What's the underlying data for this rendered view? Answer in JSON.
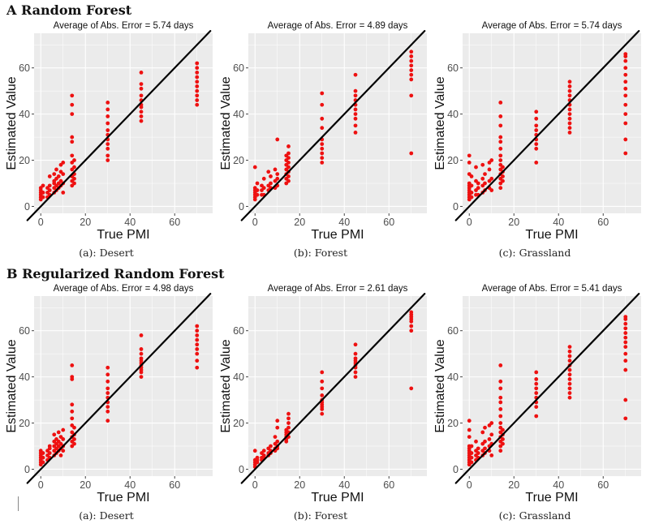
{
  "section_a_title": "A Random Forest",
  "section_b_title": "B Regularized Random Forest",
  "colors": {
    "points": "#ee1111",
    "panel_bg": "#ebebeb",
    "grid": "#ffffff",
    "line": "#000000"
  },
  "chart_data": [
    {
      "type": "scatter",
      "section": "A",
      "caption": "(a): Desert",
      "title": "Average of Abs. Error = 5.74 days",
      "xlabel": "True PMI",
      "ylabel": "Estimated Value",
      "xlim": [
        -3,
        77
      ],
      "ylim": [
        -3,
        75
      ],
      "xticks": [
        0,
        20,
        40,
        60
      ],
      "yticks": [
        0,
        20,
        40,
        60
      ],
      "reference_line": "y = x",
      "groups": [
        {
          "x": 0,
          "y": [
            3,
            4,
            5,
            6,
            7,
            8
          ]
        },
        {
          "x": 1,
          "y": [
            4,
            6,
            9
          ]
        },
        {
          "x": 3,
          "y": [
            4,
            6,
            8
          ]
        },
        {
          "x": 4,
          "y": [
            5,
            7,
            9,
            13
          ]
        },
        {
          "x": 6,
          "y": [
            6,
            8,
            10,
            11,
            14
          ]
        },
        {
          "x": 7,
          "y": [
            7,
            9,
            12,
            16
          ]
        },
        {
          "x": 8,
          "y": [
            8,
            10,
            13
          ]
        },
        {
          "x": 9,
          "y": [
            9,
            11,
            15,
            18
          ]
        },
        {
          "x": 10,
          "y": [
            6,
            10,
            14,
            19
          ]
        },
        {
          "x": 14,
          "y": [
            9,
            11,
            13,
            16,
            19,
            22,
            28,
            30,
            40,
            44,
            48
          ]
        },
        {
          "x": 15,
          "y": [
            10,
            12,
            14,
            17,
            20
          ]
        },
        {
          "x": 30,
          "y": [
            20,
            22,
            25,
            27,
            29,
            31,
            33,
            36,
            39,
            42,
            45
          ]
        },
        {
          "x": 45,
          "y": [
            37,
            39,
            41,
            43,
            44,
            46,
            48,
            51,
            53,
            58
          ]
        },
        {
          "x": 70,
          "y": [
            44,
            46,
            48,
            50,
            52,
            54,
            56,
            58,
            60,
            62
          ]
        }
      ]
    },
    {
      "type": "scatter",
      "section": "A",
      "caption": "(b): Forest",
      "title": "Average of Abs. Error = 4.89 days",
      "xlabel": "True PMI",
      "ylabel": "Estimated Value",
      "xlim": [
        -3,
        77
      ],
      "ylim": [
        -3,
        75
      ],
      "xticks": [
        0,
        20,
        40,
        60
      ],
      "yticks": [
        0,
        20,
        40,
        60
      ],
      "reference_line": "y = x",
      "groups": [
        {
          "x": 0,
          "y": [
            3,
            4,
            5,
            6,
            7,
            8,
            17
          ]
        },
        {
          "x": 1,
          "y": [
            5,
            7,
            10
          ]
        },
        {
          "x": 3,
          "y": [
            5,
            7,
            9
          ]
        },
        {
          "x": 4,
          "y": [
            5,
            8,
            12
          ]
        },
        {
          "x": 6,
          "y": [
            7,
            9,
            15
          ]
        },
        {
          "x": 7,
          "y": [
            8,
            10,
            13
          ]
        },
        {
          "x": 9,
          "y": [
            8,
            11,
            16
          ]
        },
        {
          "x": 10,
          "y": [
            9,
            12,
            14,
            29
          ]
        },
        {
          "x": 14,
          "y": [
            10,
            12,
            14,
            16,
            18,
            20,
            22
          ]
        },
        {
          "x": 15,
          "y": [
            11,
            13,
            15,
            17,
            19,
            21,
            23,
            26
          ]
        },
        {
          "x": 30,
          "y": [
            19,
            21,
            23,
            25,
            27,
            29,
            34,
            38,
            44,
            49
          ]
        },
        {
          "x": 45,
          "y": [
            32,
            35,
            38,
            40,
            42,
            44,
            46,
            48,
            50,
            57
          ]
        },
        {
          "x": 70,
          "y": [
            23,
            48,
            55,
            57,
            59,
            61,
            63,
            65,
            67
          ]
        }
      ]
    },
    {
      "type": "scatter",
      "section": "A",
      "caption": "(c): Grassland",
      "title": "Average of Abs. Error = 5.74 days",
      "xlabel": "True PMI",
      "ylabel": "Estimated Value",
      "xlim": [
        -3,
        77
      ],
      "ylim": [
        -3,
        75
      ],
      "xticks": [
        0,
        20,
        40,
        60
      ],
      "yticks": [
        0,
        20,
        40,
        60
      ],
      "reference_line": "y = x",
      "groups": [
        {
          "x": 0,
          "y": [
            3,
            4,
            5,
            6,
            7,
            8,
            9,
            10,
            14,
            19,
            22
          ]
        },
        {
          "x": 1,
          "y": [
            4,
            6,
            9,
            13
          ]
        },
        {
          "x": 3,
          "y": [
            5,
            7,
            11,
            17
          ]
        },
        {
          "x": 4,
          "y": [
            5,
            8,
            10
          ]
        },
        {
          "x": 6,
          "y": [
            6,
            9,
            12,
            18
          ]
        },
        {
          "x": 7,
          "y": [
            7,
            10,
            14
          ]
        },
        {
          "x": 9,
          "y": [
            8,
            11,
            16,
            19
          ]
        },
        {
          "x": 10,
          "y": [
            7,
            12,
            20
          ]
        },
        {
          "x": 14,
          "y": [
            8,
            10,
            12,
            14,
            16,
            18,
            20,
            22,
            25,
            28,
            30,
            35,
            39,
            45
          ]
        },
        {
          "x": 15,
          "y": [
            11,
            13,
            15,
            17
          ]
        },
        {
          "x": 30,
          "y": [
            19,
            25,
            27,
            29,
            31,
            33,
            35,
            38,
            41
          ]
        },
        {
          "x": 45,
          "y": [
            32,
            34,
            36,
            38,
            40,
            42,
            44,
            46,
            48,
            50,
            52,
            54
          ]
        },
        {
          "x": 70,
          "y": [
            23,
            29,
            36,
            40,
            44,
            48,
            51,
            54,
            57,
            60,
            63,
            65,
            66
          ]
        }
      ]
    },
    {
      "type": "scatter",
      "section": "B",
      "caption": "(a): Desert",
      "title": "Average of Abs. Error = 4.98 days",
      "xlabel": "True PMI",
      "ylabel": "Estimated Value",
      "xlim": [
        -3,
        77
      ],
      "ylim": [
        -3,
        75
      ],
      "xticks": [
        0,
        20,
        40,
        60
      ],
      "yticks": [
        0,
        20,
        40,
        60
      ],
      "reference_line": "y = x",
      "groups": [
        {
          "x": 0,
          "y": [
            2,
            3,
            4,
            5,
            6,
            7,
            8
          ]
        },
        {
          "x": 1,
          "y": [
            3,
            5,
            7
          ]
        },
        {
          "x": 3,
          "y": [
            4,
            6,
            8
          ]
        },
        {
          "x": 4,
          "y": [
            5,
            7,
            9,
            10
          ]
        },
        {
          "x": 6,
          "y": [
            6,
            8,
            10,
            12,
            15
          ]
        },
        {
          "x": 7,
          "y": [
            7,
            9,
            11,
            13
          ]
        },
        {
          "x": 8,
          "y": [
            8,
            10,
            12,
            16
          ]
        },
        {
          "x": 9,
          "y": [
            6,
            9,
            11,
            14
          ]
        },
        {
          "x": 10,
          "y": [
            8,
            10,
            13,
            17
          ]
        },
        {
          "x": 14,
          "y": [
            10,
            12,
            14,
            16,
            19,
            22,
            25,
            28,
            39,
            40,
            45
          ]
        },
        {
          "x": 15,
          "y": [
            11,
            13,
            15,
            18
          ]
        },
        {
          "x": 30,
          "y": [
            21,
            25,
            27,
            29,
            31,
            33,
            35,
            38,
            41,
            44
          ]
        },
        {
          "x": 45,
          "y": [
            40,
            42,
            43,
            44,
            45,
            46,
            47,
            48,
            50,
            52,
            58
          ]
        },
        {
          "x": 70,
          "y": [
            44,
            47,
            50,
            52,
            54,
            56,
            58,
            60,
            62
          ]
        }
      ]
    },
    {
      "type": "scatter",
      "section": "B",
      "caption": "(b): Forest",
      "title": "Average of Abs. Error = 2.61 days",
      "xlabel": "True PMI",
      "ylabel": "Estimated Value",
      "xlim": [
        -3,
        77
      ],
      "ylim": [
        -3,
        75
      ],
      "xticks": [
        0,
        20,
        40,
        60
      ],
      "yticks": [
        0,
        20,
        40,
        60
      ],
      "reference_line": "y = x",
      "groups": [
        {
          "x": 0,
          "y": [
            1,
            2,
            3,
            4,
            8
          ]
        },
        {
          "x": 1,
          "y": [
            3,
            4,
            5
          ]
        },
        {
          "x": 3,
          "y": [
            4,
            5,
            7
          ]
        },
        {
          "x": 4,
          "y": [
            5,
            6,
            8
          ]
        },
        {
          "x": 6,
          "y": [
            6,
            7,
            9
          ]
        },
        {
          "x": 7,
          "y": [
            7,
            8,
            10
          ]
        },
        {
          "x": 9,
          "y": [
            8,
            9,
            11,
            14
          ]
        },
        {
          "x": 10,
          "y": [
            9,
            10,
            12,
            18,
            21
          ]
        },
        {
          "x": 14,
          "y": [
            12,
            13,
            14,
            15,
            16,
            17
          ]
        },
        {
          "x": 15,
          "y": [
            14,
            16,
            18,
            20,
            22,
            24
          ]
        },
        {
          "x": 30,
          "y": [
            24,
            26,
            27,
            28,
            29,
            30,
            32,
            35,
            38,
            42
          ]
        },
        {
          "x": 45,
          "y": [
            40,
            42,
            44,
            45,
            46,
            47,
            48,
            50,
            54
          ]
        },
        {
          "x": 70,
          "y": [
            35,
            60,
            62,
            64,
            65,
            66,
            67,
            68
          ]
        }
      ]
    },
    {
      "type": "scatter",
      "section": "B",
      "caption": "(c): Grassland",
      "title": "Average of Abs. Error = 5.41 days",
      "xlabel": "True PMI",
      "ylabel": "Estimated Value",
      "xlim": [
        -3,
        77
      ],
      "ylim": [
        -3,
        75
      ],
      "xticks": [
        0,
        20,
        40,
        60
      ],
      "yticks": [
        0,
        20,
        40,
        60
      ],
      "reference_line": "y = x",
      "groups": [
        {
          "x": 0,
          "y": [
            2,
            3,
            4,
            5,
            6,
            7,
            8,
            9,
            10,
            14,
            17,
            21
          ]
        },
        {
          "x": 1,
          "y": [
            3,
            5,
            7,
            10
          ]
        },
        {
          "x": 3,
          "y": [
            4,
            6,
            8,
            12
          ]
        },
        {
          "x": 4,
          "y": [
            5,
            7,
            9
          ]
        },
        {
          "x": 6,
          "y": [
            6,
            8,
            11,
            16
          ]
        },
        {
          "x": 7,
          "y": [
            7,
            9,
            12,
            18
          ]
        },
        {
          "x": 9,
          "y": [
            8,
            10,
            13,
            19
          ]
        },
        {
          "x": 10,
          "y": [
            6,
            11,
            15,
            20
          ]
        },
        {
          "x": 14,
          "y": [
            8,
            10,
            12,
            14,
            16,
            18,
            20,
            23,
            26,
            29,
            31,
            35,
            38,
            45
          ]
        },
        {
          "x": 15,
          "y": [
            11,
            13,
            15,
            17
          ]
        },
        {
          "x": 30,
          "y": [
            23,
            27,
            29,
            31,
            33,
            35,
            37,
            39,
            42
          ]
        },
        {
          "x": 45,
          "y": [
            31,
            33,
            35,
            37,
            39,
            41,
            43,
            45,
            47,
            49,
            51,
            53
          ]
        },
        {
          "x": 70,
          "y": [
            22,
            30,
            43,
            47,
            50,
            53,
            55,
            57,
            59,
            61,
            63,
            65,
            66
          ]
        }
      ]
    }
  ]
}
